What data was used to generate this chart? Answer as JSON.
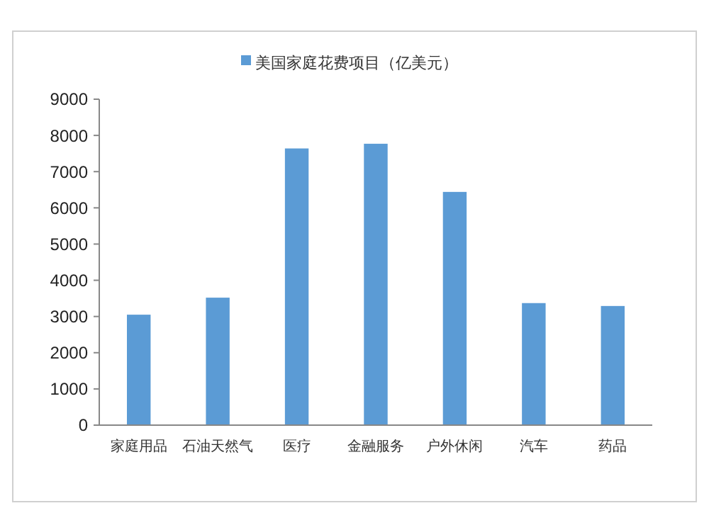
{
  "chart_data": {
    "type": "bar",
    "categories": [
      "家庭用品",
      "石油天然气",
      "医疗",
      "金融服务",
      "户外休闲",
      "汽车",
      "药品"
    ],
    "series": [
      {
        "name": "美国家庭花费项目（亿美元）",
        "color": "#5b9bd5",
        "values": [
          3050,
          3520,
          7640,
          7770,
          6440,
          3370,
          3290
        ]
      }
    ],
    "ylim": [
      0,
      9000
    ],
    "yticks": [
      0,
      1000,
      2000,
      3000,
      4000,
      5000,
      6000,
      7000,
      8000,
      9000
    ],
    "grid": false,
    "legend": "top"
  }
}
